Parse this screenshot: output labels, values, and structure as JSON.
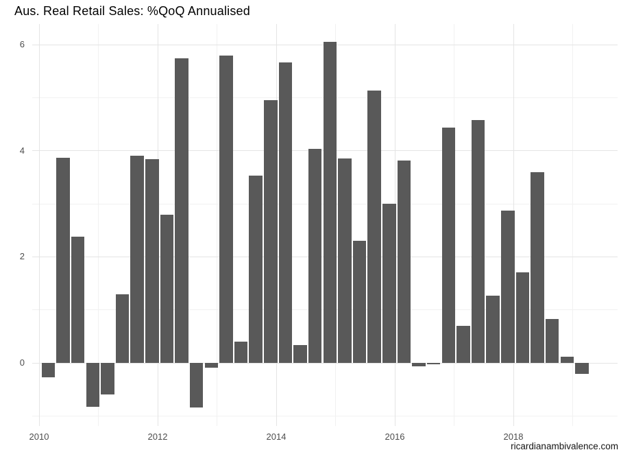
{
  "page": {
    "title": "Aus. Real Retail Sales: %QoQ Annualised",
    "caption": "ricardianambivalence.com"
  },
  "colors": {
    "bar": "#595959",
    "grid_major": "#e4e4e4",
    "grid_minor": "#f1f1f1",
    "axis_text": "#4d4d4d",
    "title_text": "#000000",
    "caption_text": "#141414",
    "background": "#ffffff"
  },
  "y_axis": {
    "tick_labels": [
      "6",
      "4",
      "2",
      "0"
    ],
    "tick_values": [
      6,
      4,
      2,
      0
    ],
    "minor_values": [
      5,
      3,
      1,
      -1
    ],
    "range": [
      -1.19,
      6.4
    ]
  },
  "x_axis": {
    "tick_labels": [
      "2010",
      "2012",
      "2014",
      "2016",
      "2018"
    ],
    "tick_values": [
      2010,
      2012,
      2014,
      2016,
      2018
    ],
    "minor_values": [
      2011,
      2013,
      2015,
      2017,
      2019
    ]
  },
  "chart_data": {
    "type": "bar",
    "title": "Aus. Real Retail Sales: %QoQ Annualised",
    "xlabel": "",
    "ylabel": "",
    "ylim": [
      -1.19,
      6.4
    ],
    "grid": "on",
    "legend": "none",
    "bar_color": "#595959",
    "categories": [
      "2010 Q1",
      "2010 Q2",
      "2010 Q3",
      "2010 Q4",
      "2011 Q1",
      "2011 Q2",
      "2011 Q3",
      "2011 Q4",
      "2012 Q1",
      "2012 Q2",
      "2012 Q3",
      "2012 Q4",
      "2013 Q1",
      "2013 Q2",
      "2013 Q3",
      "2013 Q4",
      "2014 Q1",
      "2014 Q2",
      "2014 Q3",
      "2014 Q4",
      "2015 Q1",
      "2015 Q2",
      "2015 Q3",
      "2015 Q4",
      "2016 Q1",
      "2016 Q2",
      "2016 Q3",
      "2016 Q4",
      "2017 Q1",
      "2017 Q2",
      "2017 Q3",
      "2017 Q4",
      "2018 Q1",
      "2018 Q2",
      "2018 Q3",
      "2018 Q4",
      "2019 Q1"
    ],
    "values": [
      -0.27,
      3.87,
      2.38,
      -0.83,
      -0.59,
      1.3,
      3.91,
      3.84,
      2.79,
      5.75,
      -0.84,
      -0.09,
      5.8,
      0.4,
      3.53,
      4.95,
      5.67,
      0.34,
      4.04,
      6.05,
      3.86,
      2.3,
      5.14,
      3.0,
      3.81,
      -0.06,
      -0.02,
      4.44,
      0.7,
      4.58,
      1.27,
      2.87,
      1.71,
      3.6,
      0.83,
      0.11,
      -0.21
    ],
    "annotations": [
      "ricardianambivalence.com"
    ]
  }
}
